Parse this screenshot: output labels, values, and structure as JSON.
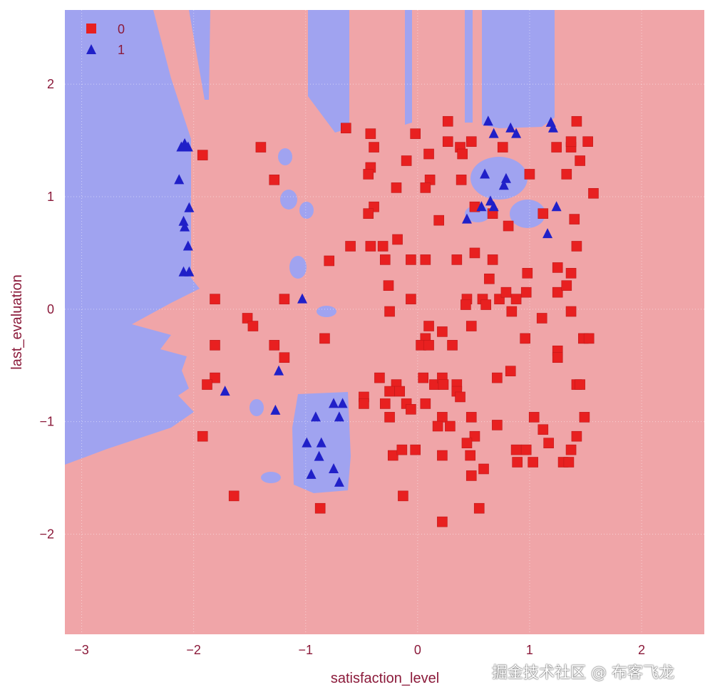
{
  "chart_data": {
    "type": "scatter",
    "subtype": "decision-regions",
    "xlabel": "satisfaction_level",
    "ylabel": "last_evaluation",
    "xlim": [
      -3.15,
      2.56
    ],
    "ylim": [
      -2.89,
      2.66
    ],
    "xticks": [
      "-3",
      "-2",
      "-1",
      "0",
      "1",
      "2"
    ],
    "yticks": [
      "2",
      "1",
      "0",
      "-1",
      "-2"
    ],
    "grid": true,
    "legend_position": "top-left",
    "region_colors": {
      "0": "#f0a5a8",
      "1": "#a0a3f0"
    },
    "series": [
      {
        "name": "0",
        "marker": "square",
        "color": "#e82020",
        "points": [
          [
            -1.92,
            1.37
          ],
          [
            -1.4,
            1.44
          ],
          [
            -1.28,
            1.15
          ],
          [
            -0.79,
            0.43
          ],
          [
            -1.81,
            0.09
          ],
          [
            -1.19,
            0.09
          ],
          [
            -1.52,
            -0.08
          ],
          [
            -1.47,
            -0.15
          ],
          [
            -0.83,
            -0.26
          ],
          [
            -1.28,
            -0.32
          ],
          [
            -1.19,
            -0.43
          ],
          [
            -1.81,
            -0.32
          ],
          [
            -1.81,
            -0.61
          ],
          [
            -1.88,
            -0.67
          ],
          [
            -1.92,
            -1.13
          ],
          [
            -1.64,
            -1.66
          ],
          [
            -0.87,
            -1.77
          ],
          [
            -0.64,
            1.61
          ],
          [
            -0.42,
            1.56
          ],
          [
            -0.39,
            1.44
          ],
          [
            -0.42,
            1.26
          ],
          [
            -0.44,
            1.2
          ],
          [
            -0.39,
            0.91
          ],
          [
            -0.44,
            0.85
          ],
          [
            -0.19,
            1.08
          ],
          [
            -0.1,
            1.32
          ],
          [
            -0.02,
            1.56
          ],
          [
            0.1,
            1.38
          ],
          [
            0.11,
            1.15
          ],
          [
            0.07,
            1.08
          ],
          [
            0.19,
            0.79
          ],
          [
            0.27,
            1.67
          ],
          [
            0.27,
            1.49
          ],
          [
            0.38,
            1.44
          ],
          [
            0.4,
            1.38
          ],
          [
            0.48,
            1.49
          ],
          [
            0.39,
            1.15
          ],
          [
            0.51,
            0.91
          ],
          [
            0.67,
            0.85
          ],
          [
            0.76,
            1.44
          ],
          [
            0.81,
            0.74
          ],
          [
            1.0,
            1.2
          ],
          [
            1.12,
            0.85
          ],
          [
            1.24,
            1.44
          ],
          [
            1.37,
            1.44
          ],
          [
            1.37,
            1.49
          ],
          [
            1.42,
            1.67
          ],
          [
            1.45,
            1.32
          ],
          [
            1.52,
            1.49
          ],
          [
            1.57,
            1.03
          ],
          [
            1.33,
            1.2
          ],
          [
            1.4,
            0.8
          ],
          [
            1.42,
            0.56
          ],
          [
            -0.6,
            0.56
          ],
          [
            -0.42,
            0.56
          ],
          [
            -0.31,
            0.56
          ],
          [
            -0.18,
            0.62
          ],
          [
            -0.06,
            0.44
          ],
          [
            0.07,
            0.44
          ],
          [
            -0.29,
            0.44
          ],
          [
            0.35,
            0.44
          ],
          [
            0.51,
            0.5
          ],
          [
            0.67,
            0.44
          ],
          [
            0.64,
            0.27
          ],
          [
            0.58,
            0.09
          ],
          [
            0.61,
            0.04
          ],
          [
            0.73,
            0.09
          ],
          [
            0.79,
            0.15
          ],
          [
            0.88,
            0.09
          ],
          [
            0.84,
            -0.02
          ],
          [
            0.97,
            0.15
          ],
          [
            0.98,
            0.32
          ],
          [
            1.11,
            -0.08
          ],
          [
            0.96,
            -0.26
          ],
          [
            1.25,
            0.37
          ],
          [
            1.37,
            0.32
          ],
          [
            1.25,
            0.15
          ],
          [
            1.33,
            0.21
          ],
          [
            1.37,
            -0.02
          ],
          [
            1.48,
            -0.26
          ],
          [
            1.53,
            -0.26
          ],
          [
            1.25,
            -0.37
          ],
          [
            1.25,
            -0.43
          ],
          [
            -0.26,
            0.21
          ],
          [
            -0.25,
            -0.02
          ],
          [
            -0.06,
            0.09
          ],
          [
            0.1,
            -0.15
          ],
          [
            0.07,
            -0.26
          ],
          [
            0.03,
            -0.32
          ],
          [
            0.1,
            -0.32
          ],
          [
            0.22,
            -0.2
          ],
          [
            0.31,
            -0.32
          ],
          [
            0.44,
            0.09
          ],
          [
            0.48,
            -0.15
          ],
          [
            0.43,
            0.04
          ],
          [
            -0.34,
            -0.61
          ],
          [
            -0.19,
            -0.67
          ],
          [
            -0.25,
            -0.73
          ],
          [
            -0.16,
            -0.73
          ],
          [
            0.05,
            -0.61
          ],
          [
            0.15,
            -0.67
          ],
          [
            0.22,
            -0.61
          ],
          [
            0.23,
            -0.67
          ],
          [
            0.35,
            -0.67
          ],
          [
            0.35,
            -0.73
          ],
          [
            0.38,
            -0.78
          ],
          [
            0.71,
            -0.61
          ],
          [
            0.83,
            -0.55
          ],
          [
            -0.48,
            -0.78
          ],
          [
            -0.48,
            -0.84
          ],
          [
            -0.29,
            -0.84
          ],
          [
            -0.1,
            -0.84
          ],
          [
            -0.06,
            -0.89
          ],
          [
            0.07,
            -0.84
          ],
          [
            -0.25,
            -0.96
          ],
          [
            0.22,
            -0.96
          ],
          [
            0.18,
            -1.04
          ],
          [
            0.29,
            -1.04
          ],
          [
            0.48,
            -0.96
          ],
          [
            0.51,
            -1.13
          ],
          [
            0.44,
            -1.19
          ],
          [
            0.71,
            -1.03
          ],
          [
            1.04,
            -0.96
          ],
          [
            1.12,
            -1.07
          ],
          [
            1.42,
            -1.13
          ],
          [
            1.49,
            -0.96
          ],
          [
            1.42,
            -0.67
          ],
          [
            1.45,
            -0.67
          ],
          [
            -0.22,
            -1.3
          ],
          [
            -0.14,
            -1.25
          ],
          [
            -0.02,
            -1.25
          ],
          [
            0.22,
            -1.3
          ],
          [
            0.47,
            -1.3
          ],
          [
            0.88,
            -1.25
          ],
          [
            0.97,
            -1.25
          ],
          [
            0.89,
            -1.36
          ],
          [
            1.03,
            -1.36
          ],
          [
            1.17,
            -1.19
          ],
          [
            1.37,
            -1.25
          ],
          [
            1.3,
            -1.36
          ],
          [
            1.35,
            -1.36
          ],
          [
            0.48,
            -1.48
          ],
          [
            0.59,
            -1.42
          ],
          [
            -0.13,
            -1.66
          ],
          [
            0.55,
            -1.77
          ],
          [
            0.22,
            -1.89
          ]
        ]
      },
      {
        "name": "1",
        "marker": "triangle",
        "color": "#2020c8",
        "points": [
          [
            -2.11,
            1.44
          ],
          [
            -2.08,
            1.47
          ],
          [
            -2.05,
            1.44
          ],
          [
            -2.13,
            1.15
          ],
          [
            -2.09,
            0.78
          ],
          [
            -2.08,
            0.73
          ],
          [
            -2.04,
            0.9
          ],
          [
            -2.05,
            0.56
          ],
          [
            -2.09,
            0.33
          ],
          [
            -2.04,
            0.33
          ],
          [
            -1.03,
            0.09
          ],
          [
            -1.24,
            -0.55
          ],
          [
            -1.72,
            -0.73
          ],
          [
            -1.27,
            -0.9
          ],
          [
            -0.91,
            -0.96
          ],
          [
            -0.75,
            -0.84
          ],
          [
            -0.67,
            -0.84
          ],
          [
            -0.7,
            -0.96
          ],
          [
            -0.99,
            -1.19
          ],
          [
            -0.86,
            -1.19
          ],
          [
            -0.88,
            -1.31
          ],
          [
            -0.95,
            -1.47
          ],
          [
            -0.75,
            -1.42
          ],
          [
            -0.7,
            -1.54
          ],
          [
            0.63,
            1.67
          ],
          [
            0.68,
            1.56
          ],
          [
            0.83,
            1.61
          ],
          [
            0.88,
            1.56
          ],
          [
            1.19,
            1.66
          ],
          [
            1.21,
            1.61
          ],
          [
            0.6,
            1.2
          ],
          [
            0.79,
            1.16
          ],
          [
            0.77,
            1.1
          ],
          [
            0.65,
            0.96
          ],
          [
            0.57,
            0.91
          ],
          [
            0.68,
            0.91
          ],
          [
            0.44,
            0.8
          ],
          [
            1.24,
            0.91
          ],
          [
            1.16,
            0.67
          ]
        ]
      }
    ]
  },
  "watermark": "掘金技术社区 @ 布客飞龙"
}
